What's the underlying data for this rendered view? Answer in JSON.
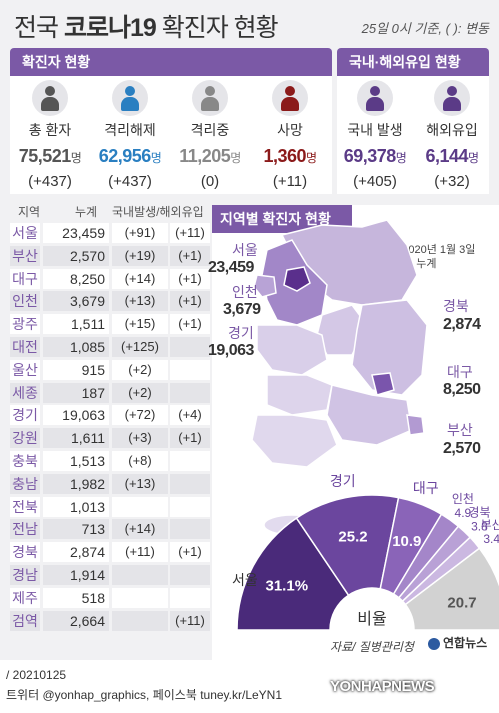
{
  "title": {
    "prefix": "전국 ",
    "bold": "코로나19",
    "suffix": " 확진자 현황"
  },
  "title_note": "25일 0시 기준, ( ): 변동",
  "panels": {
    "left_title": "확진자 현황",
    "right_title": "국내·해외유입 현황"
  },
  "stats": [
    {
      "label": "총 환자",
      "value": "75,521",
      "unit": "명",
      "change": "(+437)",
      "color": "#555555"
    },
    {
      "label": "격리해제",
      "value": "62,956",
      "unit": "명",
      "change": "(+437)",
      "color": "#2a7fc1"
    },
    {
      "label": "격리중",
      "value": "11,205",
      "unit": "명",
      "change": "(0)",
      "color": "#888888"
    },
    {
      "label": "사망",
      "value": "1,360",
      "unit": "명",
      "change": "(+11)",
      "color": "#8b1a1a"
    },
    {
      "label": "국내 발생",
      "value": "69,378",
      "unit": "명",
      "change": "(+405)",
      "color": "#5b3b87"
    },
    {
      "label": "해외유입",
      "value": "6,144",
      "unit": "명",
      "change": "(+32)",
      "color": "#5b3b87"
    }
  ],
  "table": {
    "headers": [
      "지역",
      "누계",
      "국내발생/해외유입"
    ],
    "rows": [
      {
        "region": "서울",
        "total": "23,459",
        "domestic": "(+91)",
        "overseas": "(+11)"
      },
      {
        "region": "부산",
        "total": "2,570",
        "domestic": "(+19)",
        "overseas": "(+1)"
      },
      {
        "region": "대구",
        "total": "8,250",
        "domestic": "(+14)",
        "overseas": "(+1)"
      },
      {
        "region": "인천",
        "total": "3,679",
        "domestic": "(+13)",
        "overseas": "(+1)"
      },
      {
        "region": "광주",
        "total": "1,511",
        "domestic": "(+15)",
        "overseas": "(+1)"
      },
      {
        "region": "대전",
        "total": "1,085",
        "domestic": "(+125)",
        "overseas": ""
      },
      {
        "region": "울산",
        "total": "915",
        "domestic": "(+2)",
        "overseas": ""
      },
      {
        "region": "세종",
        "total": "187",
        "domestic": "(+2)",
        "overseas": ""
      },
      {
        "region": "경기",
        "total": "19,063",
        "domestic": "(+72)",
        "overseas": "(+4)"
      },
      {
        "region": "강원",
        "total": "1,611",
        "domestic": "(+3)",
        "overseas": "(+1)"
      },
      {
        "region": "충북",
        "total": "1,513",
        "domestic": "(+8)",
        "overseas": ""
      },
      {
        "region": "충남",
        "total": "1,982",
        "domestic": "(+13)",
        "overseas": ""
      },
      {
        "region": "전북",
        "total": "1,013",
        "domestic": "",
        "overseas": ""
      },
      {
        "region": "전남",
        "total": "713",
        "domestic": "(+14)",
        "overseas": ""
      },
      {
        "region": "경북",
        "total": "2,874",
        "domestic": "(+11)",
        "overseas": "(+1)"
      },
      {
        "region": "경남",
        "total": "1,914",
        "domestic": "",
        "overseas": ""
      },
      {
        "region": "제주",
        "total": "518",
        "domestic": "",
        "overseas": ""
      },
      {
        "region": "검역",
        "total": "2,664",
        "domestic": "",
        "overseas": "(+11)"
      }
    ]
  },
  "map": {
    "title": "지역별 확진자 현황",
    "note_line1": "※2020년 1월 3일",
    "note_line2": "이후 누계",
    "labels": [
      {
        "name": "서울",
        "value": "23,459"
      },
      {
        "name": "인천",
        "value": "3,679"
      },
      {
        "name": "경기",
        "value": "19,063"
      },
      {
        "name": "경북",
        "value": "2,874"
      },
      {
        "name": "대구",
        "value": "8,250"
      },
      {
        "name": "부산",
        "value": "2,570"
      }
    ]
  },
  "chart_data": {
    "type": "pie",
    "center_label": "비율",
    "slices": [
      {
        "label": "서울",
        "value": 31.1,
        "display": "31.1%",
        "color": "#4a2a7a"
      },
      {
        "label": "경기",
        "value": 25.2,
        "display": "25.2",
        "color": "#6b469e"
      },
      {
        "label": "대구",
        "value": 10.9,
        "display": "10.9",
        "color": "#8a64b8"
      },
      {
        "label": "인천",
        "value": 4.9,
        "display": "4.9",
        "color": "#a486c9"
      },
      {
        "label": "경북",
        "value": 3.8,
        "display": "3.8",
        "color": "#b9a1d6"
      },
      {
        "label": "부산",
        "value": 3.4,
        "display": "3.4",
        "color": "#cbb8e1"
      },
      {
        "label": "",
        "value": 20.7,
        "display": "20.7",
        "color": "#d2d2d2"
      }
    ]
  },
  "source": "자료/ 질병관리청",
  "logo_text": "연합뉴스",
  "footer_date": "/ 20210125",
  "footer_social": "트위터 @yonhap_graphics, 페이스북 tuney.kr/LeYN1",
  "watermark": "YONHAPNEWS"
}
